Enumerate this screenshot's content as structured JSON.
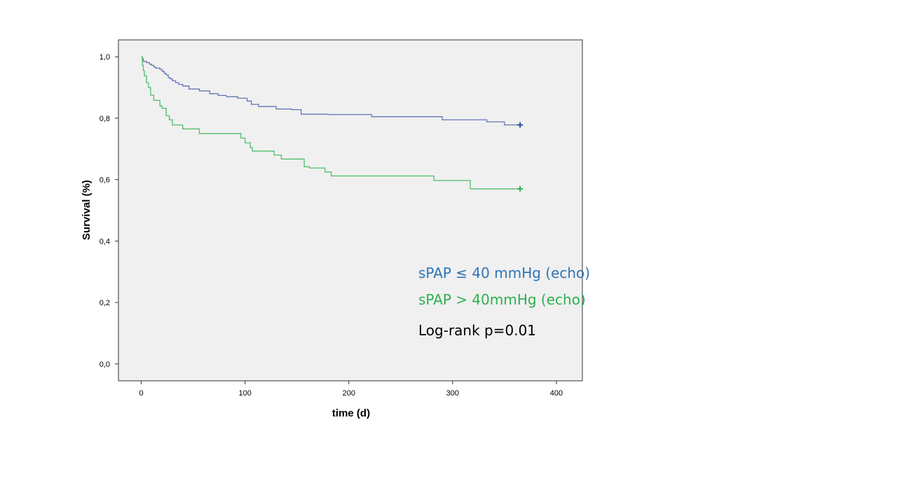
{
  "chart_data": {
    "type": "line",
    "subtype": "kaplan-meier step",
    "xlabel": "time (d)",
    "ylabel": "Survival (%)",
    "xlim": [
      -22,
      425
    ],
    "ylim": [
      -0.055,
      1.055
    ],
    "x_ticks": [
      0,
      100,
      200,
      300,
      400
    ],
    "x_tick_labels": [
      "0",
      "100",
      "200",
      "300",
      "400"
    ],
    "y_ticks": [
      0.0,
      0.2,
      0.4,
      0.6,
      0.8,
      1.0
    ],
    "y_tick_labels": [
      "0,0",
      "0,2",
      "0,4",
      "0,6",
      "0,8",
      "1,0"
    ],
    "grid": false,
    "background": "#f0f0f0",
    "series": [
      {
        "color": "#6474b4",
        "censor_color": "#2f4f9f",
        "censored_at": [
          365,
          0.778
        ],
        "x": [
          0,
          1,
          2,
          5,
          8,
          10,
          12,
          14,
          18,
          20,
          22,
          24,
          26,
          28,
          30,
          33,
          36,
          40,
          46,
          56,
          66,
          74,
          82,
          93,
          102,
          106,
          113,
          130,
          145,
          154,
          180,
          222,
          252,
          290,
          333,
          350,
          365
        ],
        "y": [
          1.0,
          0.994,
          0.985,
          0.981,
          0.976,
          0.972,
          0.967,
          0.963,
          0.959,
          0.953,
          0.946,
          0.941,
          0.932,
          0.928,
          0.922,
          0.916,
          0.91,
          0.905,
          0.895,
          0.889,
          0.88,
          0.874,
          0.87,
          0.865,
          0.856,
          0.845,
          0.838,
          0.83,
          0.828,
          0.813,
          0.812,
          0.805,
          0.805,
          0.795,
          0.788,
          0.778,
          0.778
        ]
      },
      {
        "color": "#4cbf6a",
        "censor_color": "#2db04f",
        "censored_at": [
          365,
          0.57
        ],
        "x": [
          0,
          1,
          2,
          3,
          5,
          7,
          9,
          12,
          18,
          20,
          24,
          27,
          30,
          34,
          40,
          56,
          72,
          96,
          100,
          105,
          107,
          128,
          135,
          150,
          157,
          162,
          177,
          183,
          220,
          260,
          282,
          300,
          317,
          340,
          365
        ],
        "y": [
          1.0,
          0.972,
          0.955,
          0.938,
          0.915,
          0.9,
          0.875,
          0.858,
          0.84,
          0.832,
          0.808,
          0.795,
          0.778,
          0.778,
          0.765,
          0.75,
          0.75,
          0.735,
          0.72,
          0.705,
          0.693,
          0.68,
          0.667,
          0.667,
          0.642,
          0.638,
          0.625,
          0.612,
          0.612,
          0.612,
          0.597,
          0.597,
          0.57,
          0.57,
          0.57
        ]
      }
    ],
    "annotations": [
      {
        "text": "sPAP ≤ 40 mmHg (echo)",
        "color": "#2e75b6"
      },
      {
        "text": "sPAP > 40mmHg (echo)",
        "color": "#2db04f"
      },
      {
        "text": "Log-rank p=0.01",
        "color": "#000000"
      }
    ]
  }
}
